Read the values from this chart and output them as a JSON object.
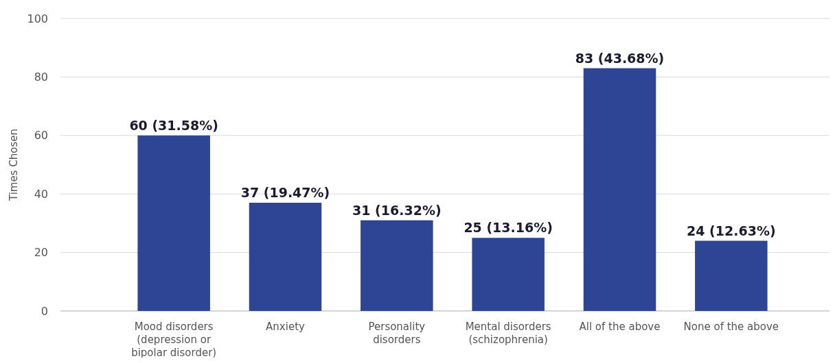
{
  "chart_data": {
    "type": "bar",
    "ylabel": "Times Chosen",
    "categories": [
      "Mood disorders (depression or bipolar disorder)",
      "Anxiety",
      "Personality disorders",
      "Mental disorders (schizophrenia)",
      "All of the above",
      "None of the above"
    ],
    "values": [
      60,
      37,
      31,
      25,
      83,
      24
    ],
    "value_labels": [
      "60 (31.58%)",
      "37 (19.47%)",
      "31 (16.32%)",
      "25 (13.16%)",
      "83 (43.68%)",
      "24 (12.63%)"
    ],
    "color": "#2e4595",
    "ylim": [
      0,
      100
    ],
    "yticks": [
      0,
      20,
      40,
      60,
      80,
      100
    ],
    "grid": "y"
  }
}
